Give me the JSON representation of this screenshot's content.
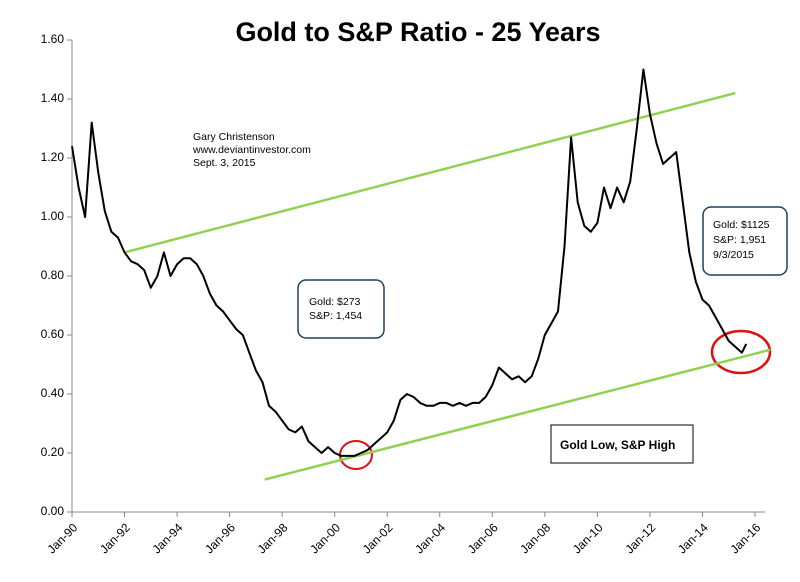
{
  "chart_data": {
    "type": "line",
    "title": "Gold to S&P Ratio - 25 Years",
    "color": "#000000",
    "x": [
      "1990-01",
      "1990-04",
      "1990-07",
      "1990-10",
      "1991-01",
      "1991-04",
      "1991-07",
      "1991-10",
      "1992-01",
      "1992-04",
      "1992-07",
      "1992-10",
      "1993-01",
      "1993-04",
      "1993-07",
      "1993-10",
      "1994-01",
      "1994-04",
      "1994-07",
      "1994-10",
      "1995-01",
      "1995-04",
      "1995-07",
      "1995-10",
      "1996-01",
      "1996-04",
      "1996-07",
      "1996-10",
      "1997-01",
      "1997-04",
      "1997-07",
      "1997-10",
      "1998-01",
      "1998-04",
      "1998-07",
      "1998-10",
      "1999-01",
      "1999-04",
      "1999-07",
      "1999-10",
      "2000-01",
      "2000-04",
      "2000-07",
      "2000-10",
      "2001-01",
      "2001-04",
      "2001-07",
      "2001-10",
      "2002-01",
      "2002-04",
      "2002-07",
      "2002-10",
      "2003-01",
      "2003-04",
      "2003-07",
      "2003-10",
      "2004-01",
      "2004-04",
      "2004-07",
      "2004-10",
      "2005-01",
      "2005-04",
      "2005-07",
      "2005-10",
      "2006-01",
      "2006-04",
      "2006-07",
      "2006-10",
      "2007-01",
      "2007-04",
      "2007-07",
      "2007-10",
      "2008-01",
      "2008-04",
      "2008-07",
      "2008-10",
      "2009-01",
      "2009-04",
      "2009-07",
      "2009-10",
      "2010-01",
      "2010-04",
      "2010-07",
      "2010-10",
      "2011-01",
      "2011-04",
      "2011-07",
      "2011-10",
      "2012-01",
      "2012-04",
      "2012-07",
      "2012-10",
      "2013-01",
      "2013-04",
      "2013-07",
      "2013-10",
      "2014-01",
      "2014-04",
      "2014-07",
      "2014-10",
      "2015-01",
      "2015-04",
      "2015-07",
      "2015-09"
    ],
    "values": [
      1.24,
      1.1,
      1.0,
      1.32,
      1.15,
      1.02,
      0.95,
      0.93,
      0.88,
      0.85,
      0.84,
      0.82,
      0.76,
      0.8,
      0.88,
      0.8,
      0.84,
      0.86,
      0.86,
      0.84,
      0.8,
      0.74,
      0.7,
      0.68,
      0.65,
      0.62,
      0.6,
      0.54,
      0.48,
      0.44,
      0.36,
      0.34,
      0.31,
      0.28,
      0.27,
      0.29,
      0.24,
      0.22,
      0.2,
      0.22,
      0.2,
      0.19,
      0.19,
      0.19,
      0.2,
      0.21,
      0.23,
      0.25,
      0.27,
      0.31,
      0.38,
      0.4,
      0.39,
      0.37,
      0.36,
      0.36,
      0.37,
      0.37,
      0.36,
      0.37,
      0.36,
      0.37,
      0.37,
      0.39,
      0.43,
      0.49,
      0.47,
      0.45,
      0.46,
      0.44,
      0.46,
      0.52,
      0.6,
      0.64,
      0.68,
      0.9,
      1.27,
      1.05,
      0.97,
      0.95,
      0.98,
      1.1,
      1.03,
      1.1,
      1.05,
      1.12,
      1.3,
      1.5,
      1.35,
      1.25,
      1.18,
      1.2,
      1.22,
      1.05,
      0.88,
      0.78,
      0.72,
      0.7,
      0.66,
      0.62,
      0.58,
      0.56,
      0.54,
      0.57
    ],
    "trend_lines": [
      {
        "color": "#92d050",
        "x": [
          "1992-01",
          "2015-04"
        ],
        "values": [
          0.88,
          1.42
        ]
      },
      {
        "color": "#92d050",
        "x": [
          "1997-05",
          "2016-08"
        ],
        "values": [
          0.11,
          0.55
        ]
      }
    ],
    "xlim": [
      "1990-01",
      "2016-01"
    ],
    "xticks": [
      {
        "value": "1990-01",
        "label": "Jan-90"
      },
      {
        "value": "1992-01",
        "label": "Jan-92"
      },
      {
        "value": "1994-01",
        "label": "Jan-94"
      },
      {
        "value": "1996-01",
        "label": "Jan-96"
      },
      {
        "value": "1998-01",
        "label": "Jan-98"
      },
      {
        "value": "2000-01",
        "label": "Jan-00"
      },
      {
        "value": "2002-01",
        "label": "Jan-02"
      },
      {
        "value": "2004-01",
        "label": "Jan-04"
      },
      {
        "value": "2006-01",
        "label": "Jan-06"
      },
      {
        "value": "2008-01",
        "label": "Jan-08"
      },
      {
        "value": "2010-01",
        "label": "Jan-10"
      },
      {
        "value": "2012-01",
        "label": "Jan-12"
      },
      {
        "value": "2014-01",
        "label": "Jan-14"
      },
      {
        "value": "2016-01",
        "label": "Jan-16"
      }
    ],
    "ylim": [
      0,
      1.6
    ],
    "yticks": [
      {
        "value": 0,
        "label": "0.00"
      },
      {
        "value": 0.2,
        "label": "0.20"
      },
      {
        "value": 0.4,
        "label": "0.40"
      },
      {
        "value": 0.6,
        "label": "0.60"
      },
      {
        "value": 0.8,
        "label": "0.80"
      },
      {
        "value": 1.0,
        "label": "1.00"
      },
      {
        "value": 1.2,
        "label": "1.20"
      },
      {
        "value": 1.4,
        "label": "1.40"
      },
      {
        "value": 1.6,
        "label": "1.60"
      }
    ],
    "annotations": [
      {
        "lines": [
          "Gary Christenson",
          "www.deviantinvestor.com",
          "Sept. 3, 2015"
        ]
      },
      {
        "lines": [
          "Gold:  $273",
          "S&P: 1,454"
        ]
      },
      {
        "lines": [
          "Gold:  $1125",
          "S&P:    1,951",
          "9/3/2015"
        ]
      },
      {
        "lines": [
          "Gold Low, S&P High"
        ]
      }
    ]
  }
}
